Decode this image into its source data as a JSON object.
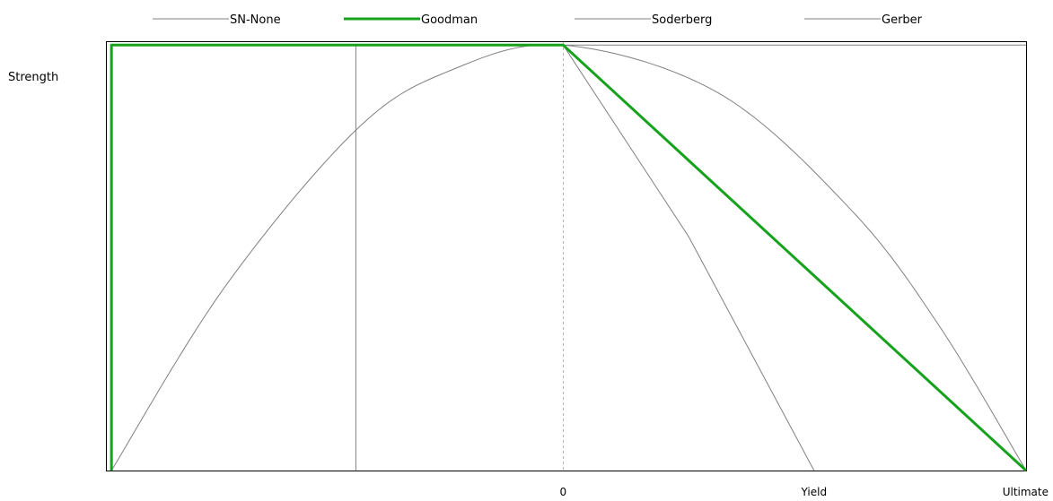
{
  "chart_data": {
    "type": "line",
    "title": "",
    "xlabel": "",
    "ylabel": "Strength",
    "legend_position": "top",
    "grid": false,
    "xlim": [
      -1.822,
      1.845
    ],
    "ylim": [
      0,
      1.009
    ],
    "x_ticks": [
      {
        "value": 0,
        "label": "0"
      },
      {
        "value": 1,
        "label": "Yield"
      },
      {
        "value": 1.845,
        "label": "Ultimate"
      }
    ],
    "series": [
      {
        "name": "SN-None",
        "color": "#808080",
        "width": "thin",
        "x": [
          -0.826,
          -0.826,
          1.845
        ],
        "y": [
          0,
          1,
          1
        ]
      },
      {
        "name": "Goodman",
        "color": "#16a21c",
        "width": "thick",
        "x": [
          -1.8,
          -1.8,
          0,
          1.845
        ],
        "y": [
          0,
          1,
          1,
          0
        ]
      },
      {
        "name": "Soderberg",
        "color": "#808080",
        "width": "thin",
        "x": [
          0,
          0.5,
          1
        ],
        "y": [
          1,
          0.55,
          0
        ]
      },
      {
        "name": "Gerber",
        "color": "#808080",
        "width": "thin",
        "x": [
          -1.8,
          -1.35,
          -0.826,
          -0.45,
          0,
          0.62,
          1.15,
          1.5,
          1.845
        ],
        "y": [
          0,
          0.43,
          0.8,
          0.94,
          1,
          0.887,
          0.611,
          0.339,
          0
        ]
      }
    ],
    "reference_lines": [
      {
        "axis": "x",
        "value": 0,
        "style": "dashed",
        "color": "#b4b4b4"
      }
    ]
  }
}
